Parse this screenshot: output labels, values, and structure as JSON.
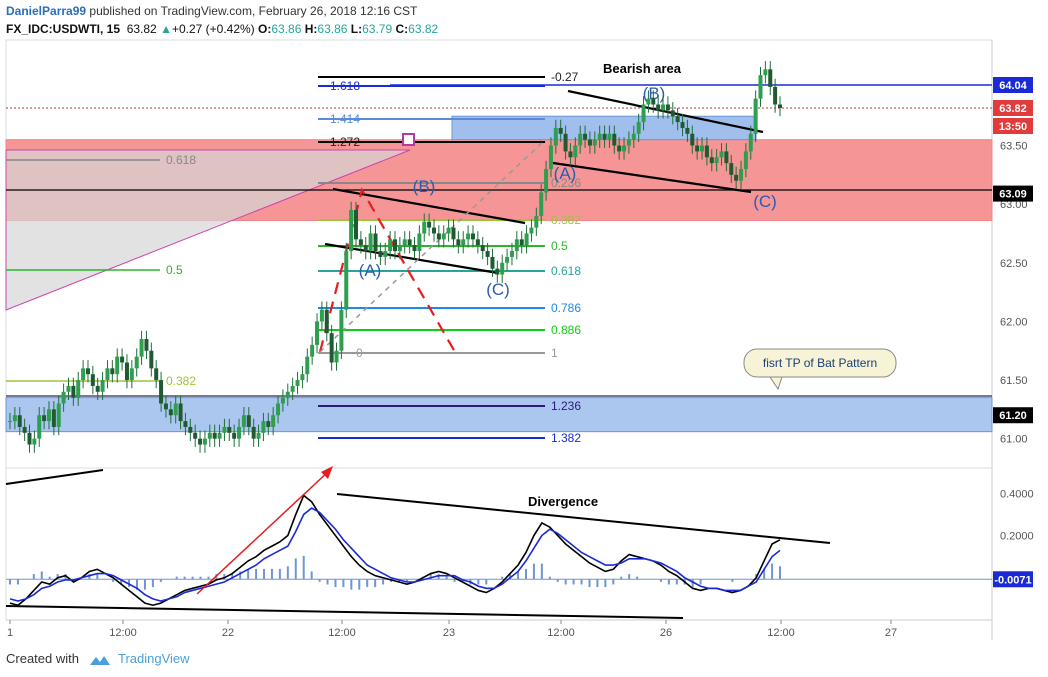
{
  "header": {
    "author": "DanielParra99",
    "published": "published on TradingView.com, February 26, 2018 12:16 CST",
    "symbol": "FX_IDC:USDWTI, 15",
    "last": "63.82",
    "change": "+0.27 (+0.42%)",
    "o_label": "O:",
    "o": "63.86",
    "h_label": "H:",
    "h": "63.86",
    "l_label": "L:",
    "l": "63.79",
    "c_label": "C:",
    "c": "63.82"
  },
  "footer": {
    "created_with": "Created with",
    "brand": "TradingView"
  },
  "colors": {
    "up": "#26a69a",
    "down": "#ef5350",
    "candle": "#1f6e3a",
    "zone_red": "#f48a8a",
    "zone_blue": "#8fb4ea",
    "macd": "#000000",
    "signal": "#1a2bd6"
  },
  "chart_data": [
    {
      "type": "candlestick",
      "pane": "price",
      "x_ticks": [
        "1",
        "12:00",
        "22",
        "12:00",
        "23",
        "12:00",
        "26",
        "12:00",
        "27"
      ],
      "y_ticks": [
        "61.00",
        "61.50",
        "62.00",
        "62.50",
        "63.00",
        "63.50"
      ],
      "ylim": [
        60.75,
        64.4
      ],
      "price_labels": [
        {
          "value": 64.04,
          "text": "64.04",
          "color": "#1a2bd6"
        },
        {
          "value": 63.82,
          "text": "63.82",
          "color": "#e23b3b"
        },
        {
          "value": 63.5,
          "text": "13:50",
          "color": "#e23b3b"
        },
        {
          "value": 63.09,
          "text": "63.09",
          "color": "#000000"
        },
        {
          "value": 61.2,
          "text": "61.20",
          "color": "#000000"
        }
      ],
      "series": [
        {
          "values": [
            61.15,
            61.2,
            61.1,
            61.05,
            60.95,
            61.0,
            61.2,
            61.15,
            61.25,
            61.1,
            61.3,
            61.4,
            61.45,
            61.35,
            61.5,
            61.6,
            61.55,
            61.45,
            61.4,
            61.5,
            61.6,
            61.55,
            61.7,
            61.65,
            61.5,
            61.6,
            61.7,
            61.85,
            61.75,
            61.6,
            61.5,
            61.3,
            61.25,
            61.2,
            61.3,
            61.15,
            61.1,
            61.05,
            61.0,
            60.95,
            61.0,
            61.05,
            61.0,
            61.05,
            61.1,
            61.05,
            61.0,
            61.1,
            61.2,
            61.1,
            61.0,
            61.05,
            61.15,
            61.1,
            61.2,
            61.3,
            61.35,
            61.4,
            61.45,
            61.5,
            61.55,
            61.7,
            61.8,
            62.0,
            62.1,
            61.9,
            61.65,
            61.75,
            62.1,
            62.6,
            62.95,
            62.7,
            62.65,
            62.6,
            62.75,
            62.6,
            62.55,
            62.6,
            62.7,
            62.6,
            62.65,
            62.7,
            62.65,
            62.6,
            62.75,
            62.85,
            62.8,
            62.75,
            62.7,
            62.75,
            62.8,
            62.7,
            62.65,
            62.7,
            62.75,
            62.7,
            62.65,
            62.6,
            62.55,
            62.45,
            62.4,
            62.5,
            62.55,
            62.6,
            62.7,
            62.65,
            62.75,
            62.8,
            62.9,
            63.1,
            63.3,
            63.5,
            63.65,
            63.6,
            63.45,
            63.4,
            63.5,
            63.6,
            63.55,
            63.5,
            63.55,
            63.6,
            63.55,
            63.6,
            63.5,
            63.45,
            63.5,
            63.55,
            63.6,
            63.7,
            63.85,
            63.9,
            63.85,
            63.8,
            63.85,
            63.8,
            63.75,
            63.7,
            63.65,
            63.6,
            63.5,
            63.45,
            63.5,
            63.4,
            63.35,
            63.4,
            63.45,
            63.35,
            63.25,
            63.2,
            63.3,
            63.45,
            63.6,
            63.9,
            64.1,
            64.15,
            64.0,
            63.85,
            63.82
          ]
        }
      ],
      "annotations": [
        {
          "text": "Bearish area"
        },
        {
          "text": "fisrt TP of Bat Pattern"
        },
        {
          "text": "(A)"
        },
        {
          "text": "(B)"
        },
        {
          "text": "(C)"
        }
      ],
      "fib_left": [
        "0.618",
        "0.5",
        "0.382"
      ],
      "fib_right": [
        "-0.27",
        "1.618",
        "1.414",
        "1.272",
        "0.236",
        "0.382",
        "0.5",
        "0.618",
        "0.786",
        "0.886",
        "0",
        "1",
        "1.236",
        "1.382"
      ],
      "zones": [
        {
          "name": "red",
          "from": 62.86,
          "to": 63.55
        },
        {
          "name": "blue-upper",
          "from": 63.55,
          "to": 63.75
        },
        {
          "name": "blue-lower",
          "from": 61.06,
          "to": 61.35
        }
      ]
    },
    {
      "type": "line",
      "pane": "macd",
      "y_ticks": [
        "0.4000",
        "0.2000"
      ],
      "ylim": [
        -0.2,
        0.52
      ],
      "price_labels": [
        {
          "value": -0.0071,
          "text": "-0.0071",
          "color": "#1a2bd6"
        }
      ],
      "annotations": [
        {
          "text": "Divergence"
        }
      ],
      "series": [
        {
          "values": [
            -0.12,
            -0.13,
            -0.1,
            -0.06,
            -0.02,
            -0.03,
            0.0,
            0.01,
            -0.02,
            0.0,
            0.03,
            0.04,
            0.02,
            0.0,
            -0.03,
            -0.06,
            -0.09,
            -0.12,
            -0.13,
            -0.12,
            -0.1,
            -0.08,
            -0.06,
            -0.05,
            -0.04,
            -0.03,
            -0.01,
            0.0,
            0.02,
            0.05,
            0.08,
            0.1,
            0.13,
            0.15,
            0.17,
            0.2,
            0.3,
            0.39,
            0.36,
            0.3,
            0.25,
            0.2,
            0.15,
            0.1,
            0.06,
            0.03,
            0.01,
            0.0,
            -0.01,
            -0.02,
            -0.03,
            -0.02,
            0.0,
            0.02,
            0.03,
            0.02,
            0.0,
            -0.02,
            -0.04,
            -0.06,
            -0.07,
            -0.05,
            -0.02,
            0.02,
            0.06,
            0.12,
            0.2,
            0.26,
            0.24,
            0.2,
            0.16,
            0.13,
            0.1,
            0.07,
            0.05,
            0.03,
            0.04,
            0.08,
            0.11,
            0.1,
            0.09,
            0.08,
            0.06,
            0.03,
            0.01,
            -0.02,
            -0.05,
            -0.06,
            -0.05,
            -0.05,
            -0.06,
            -0.07,
            -0.06,
            -0.04,
            0.0,
            0.08,
            0.16,
            0.18
          ]
        },
        {
          "values": [
            -0.1,
            -0.11,
            -0.1,
            -0.08,
            -0.05,
            -0.04,
            -0.02,
            -0.01,
            -0.01,
            0.0,
            0.01,
            0.02,
            0.02,
            0.01,
            -0.01,
            -0.03,
            -0.05,
            -0.08,
            -0.1,
            -0.11,
            -0.1,
            -0.09,
            -0.07,
            -0.06,
            -0.05,
            -0.04,
            -0.03,
            -0.02,
            0.0,
            0.02,
            0.04,
            0.06,
            0.09,
            0.11,
            0.13,
            0.15,
            0.22,
            0.3,
            0.33,
            0.31,
            0.27,
            0.23,
            0.18,
            0.14,
            0.1,
            0.06,
            0.04,
            0.02,
            0.0,
            -0.01,
            -0.02,
            -0.02,
            -0.01,
            0.0,
            0.01,
            0.01,
            0.01,
            -0.01,
            -0.02,
            -0.04,
            -0.05,
            -0.05,
            -0.03,
            0.0,
            0.03,
            0.08,
            0.14,
            0.2,
            0.23,
            0.21,
            0.18,
            0.15,
            0.12,
            0.1,
            0.08,
            0.06,
            0.06,
            0.07,
            0.09,
            0.09,
            0.09,
            0.08,
            0.07,
            0.05,
            0.03,
            0.0,
            -0.02,
            -0.04,
            -0.05,
            -0.05,
            -0.06,
            -0.06,
            -0.06,
            -0.04,
            -0.02,
            0.04,
            0.1,
            0.13
          ]
        }
      ]
    }
  ]
}
